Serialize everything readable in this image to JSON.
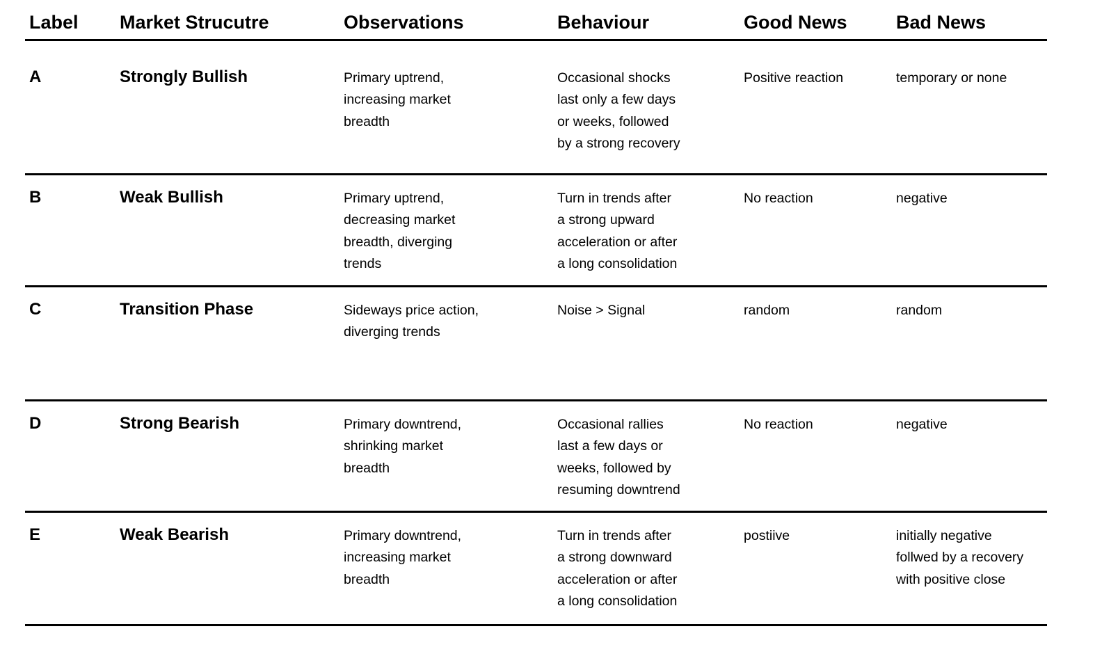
{
  "colors": {
    "background": "#ffffff",
    "text": "#000000",
    "rule": "#000000"
  },
  "table": {
    "headers": {
      "label": "Label",
      "market": "Market Strucutre",
      "observations": "Observations",
      "behaviour": "Behaviour",
      "good": "Good News",
      "bad": "Bad News"
    },
    "rows": [
      {
        "label": "A",
        "market": "Strongly Bullish",
        "observations": "Primary uptrend,\nincreasing market\nbreadth",
        "behaviour": "Occasional shocks\nlast only a few days\nor weeks, followed\nby a strong recovery",
        "good": "Positive reaction",
        "bad": "temporary or none"
      },
      {
        "label": "B",
        "market": "Weak Bullish",
        "observations": "Primary uptrend,\ndecreasing market\nbreadth, diverging\ntrends",
        "behaviour": "Turn in trends after\na strong upward\nacceleration or after\na long consolidation",
        "good": "No reaction",
        "bad": "negative"
      },
      {
        "label": "C",
        "market": "Transition Phase",
        "observations": "Sideways price action,\ndiverging trends",
        "behaviour": "Noise > Signal",
        "good": "random",
        "bad": "random"
      },
      {
        "label": "D",
        "market": "Strong Bearish",
        "observations": "Primary downtrend,\nshrinking market\nbreadth",
        "behaviour": "Occasional rallies\nlast a few days or\nweeks, followed by\nresuming downtrend",
        "good": "No reaction",
        "bad": "negative"
      },
      {
        "label": "E",
        "market": "Weak Bearish",
        "observations": "Primary downtrend,\nincreasing market\nbreadth",
        "behaviour": "Turn in trends after\na strong downward\nacceleration or after\na long consolidation",
        "good": "postiive",
        "bad": "initially negative\nfollwed by a recovery\nwith positive close"
      }
    ]
  }
}
